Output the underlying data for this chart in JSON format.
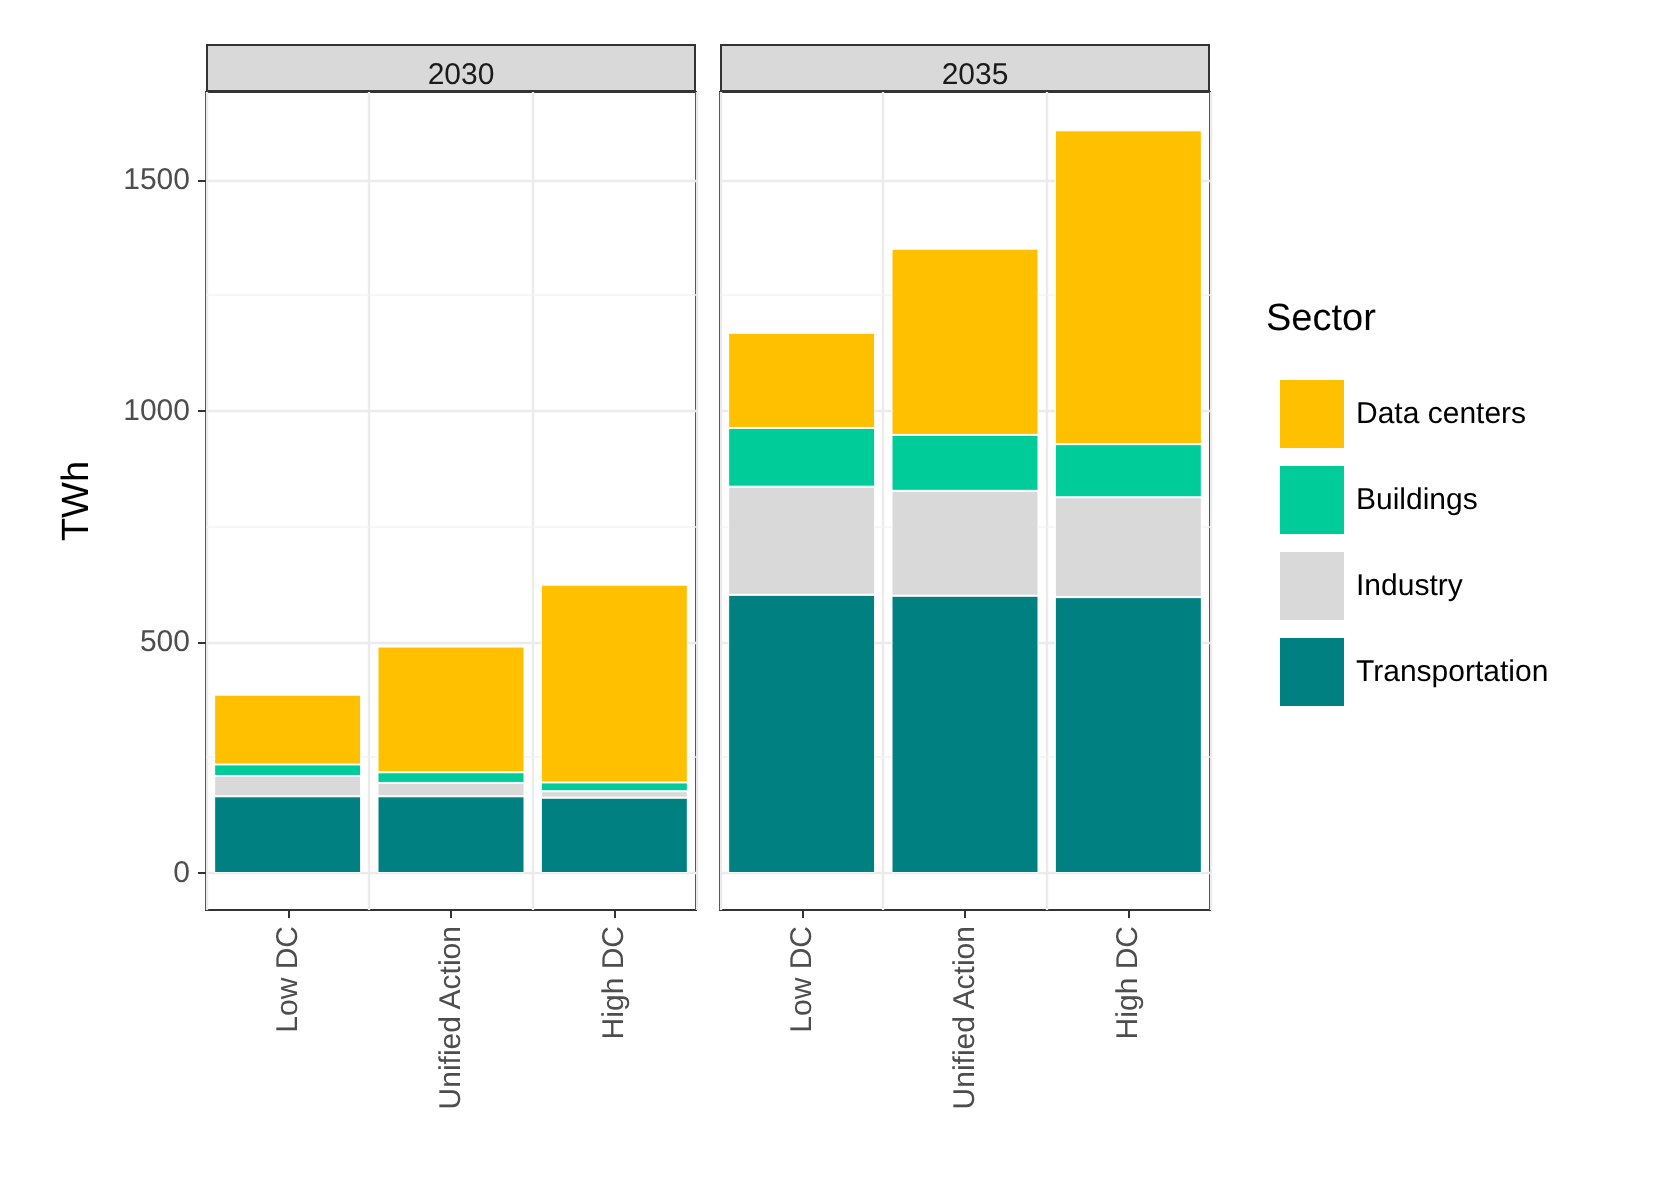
{
  "chart_data": [
    {
      "type": "bar",
      "title": "2030",
      "ylabel": "TWh",
      "categories": [
        "Low DC",
        "Unified Action",
        "High DC"
      ],
      "stacked": true,
      "ylim": [
        -80,
        1690
      ],
      "yticks": [
        0,
        500,
        1000,
        1500
      ],
      "grid": true,
      "legend": false,
      "series": [
        {
          "color": "#008080",
          "values": [
            166,
            166,
            163
          ]
        },
        {
          "color": "#d9d9d9",
          "values": [
            44,
            29,
            14
          ]
        },
        {
          "color": "#00cc99",
          "values": [
            25,
            23,
            19
          ]
        },
        {
          "color": "#ffc000",
          "values": [
            151,
            272,
            428
          ]
        }
      ]
    },
    {
      "type": "bar",
      "title": "2035",
      "legend_title": "Sector",
      "categories": [
        "Low DC",
        "Unified Action",
        "High DC"
      ],
      "stacked": true,
      "ylim": [
        -80,
        1690
      ],
      "yticks": [
        0,
        500,
        1000,
        1500
      ],
      "grid": true,
      "legend": "right",
      "tick_labels": "x",
      "series": [
        {
          "name": "Transportation",
          "color": "#008080",
          "values": [
            602,
            600,
            597
          ]
        },
        {
          "name": "Industry",
          "color": "#d9d9d9",
          "values": [
            234,
            227,
            216
          ]
        },
        {
          "name": "Buildings",
          "color": "#00cc99",
          "values": [
            127,
            121,
            115
          ]
        },
        {
          "name": "Data centers",
          "color": "#ffc000",
          "values": [
            206,
            403,
            679
          ]
        }
      ]
    }
  ]
}
